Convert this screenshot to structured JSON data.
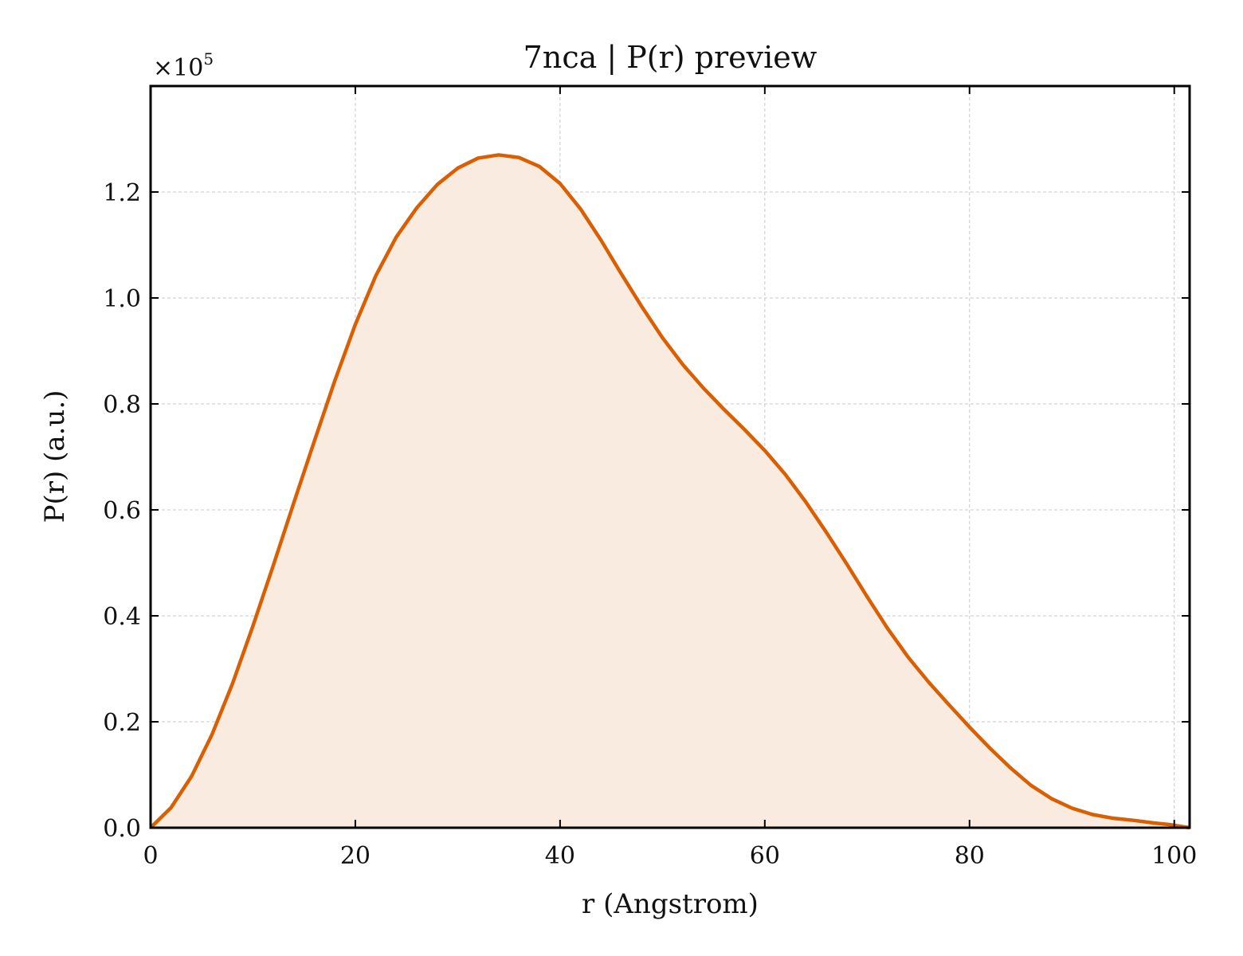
{
  "chart_data": {
    "type": "area",
    "title": "7nca | P(r) preview",
    "xlabel": "r (Angstrom)",
    "ylabel": "P(r) (a.u.)",
    "y_multiplier": "×10",
    "y_multiplier_exponent": "5",
    "xlim": [
      0,
      101.5
    ],
    "ylim": [
      0,
      1.4
    ],
    "xticks": [
      0,
      20,
      40,
      60,
      80,
      100
    ],
    "xtick_labels": [
      "0",
      "20",
      "40",
      "60",
      "80",
      "100"
    ],
    "yticks": [
      0.0,
      0.2,
      0.4,
      0.6,
      0.8,
      1.0,
      1.2
    ],
    "ytick_labels": [
      "0.0",
      "0.2",
      "0.4",
      "0.6",
      "0.8",
      "1.0",
      "1.2"
    ],
    "grid": true,
    "line_color": "#d95f02",
    "fill_color": "#f9ebe0",
    "series": [
      {
        "x": [
          0,
          2,
          4,
          6,
          8,
          10,
          12,
          14,
          16,
          18,
          20,
          22,
          24,
          26,
          28,
          30,
          32,
          34,
          36,
          38,
          40,
          42,
          44,
          46,
          48,
          50,
          52,
          54,
          56,
          58,
          60,
          62,
          64,
          66,
          68,
          70,
          72,
          74,
          76,
          78,
          80,
          82,
          84,
          86,
          88,
          90,
          92,
          94,
          96,
          98,
          99.5,
          101.5
        ],
        "y": [
          0.0,
          0.038,
          0.097,
          0.176,
          0.272,
          0.381,
          0.496,
          0.614,
          0.73,
          0.844,
          0.95,
          1.042,
          1.115,
          1.17,
          1.214,
          1.245,
          1.264,
          1.27,
          1.265,
          1.248,
          1.216,
          1.168,
          1.109,
          1.045,
          0.983,
          0.925,
          0.874,
          0.83,
          0.79,
          0.752,
          0.712,
          0.667,
          0.615,
          0.558,
          0.498,
          0.436,
          0.376,
          0.322,
          0.275,
          0.232,
          0.19,
          0.15,
          0.113,
          0.08,
          0.055,
          0.037,
          0.025,
          0.018,
          0.014,
          0.009,
          0.006,
          0.0
        ]
      }
    ]
  }
}
